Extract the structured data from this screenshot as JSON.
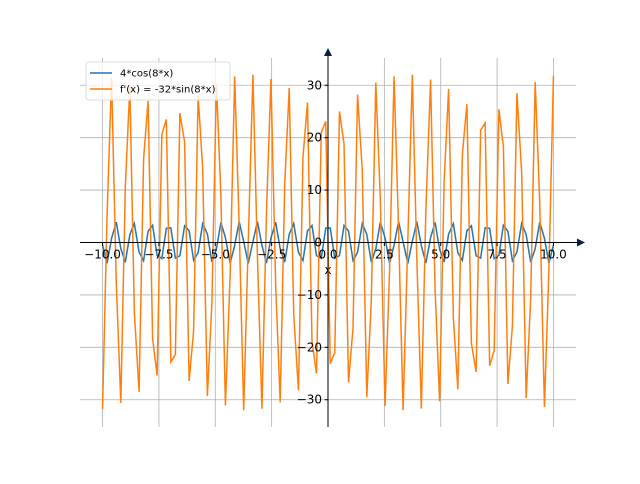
{
  "chart_data": {
    "type": "line",
    "x": [
      -10.0,
      -9.8,
      -9.6,
      -9.39,
      -9.19,
      -8.99,
      -8.79,
      -8.59,
      -8.38,
      -8.18,
      -7.98,
      -7.78,
      -7.58,
      -7.37,
      -7.17,
      -6.97,
      -6.77,
      -6.57,
      -6.36,
      -6.16,
      -5.96,
      -5.76,
      -5.56,
      -5.35,
      -5.15,
      -4.95,
      -4.75,
      -4.55,
      -4.34,
      -4.14,
      -3.94,
      -3.74,
      -3.54,
      -3.33,
      -3.13,
      -2.93,
      -2.73,
      -2.53,
      -2.32,
      -2.12,
      -1.92,
      -1.72,
      -1.52,
      -1.31,
      -1.11,
      -0.91,
      -0.71,
      -0.51,
      -0.3,
      -0.1,
      0.1,
      0.3,
      0.51,
      0.71,
      0.91,
      1.11,
      1.31,
      1.52,
      1.72,
      1.92,
      2.12,
      2.32,
      2.53,
      2.73,
      2.93,
      3.13,
      3.33,
      3.54,
      3.74,
      3.94,
      4.14,
      4.34,
      4.55,
      4.75,
      4.95,
      5.15,
      5.35,
      5.56,
      5.76,
      5.96,
      6.16,
      6.36,
      6.57,
      6.77,
      6.97,
      7.17,
      7.37,
      7.58,
      7.78,
      7.98,
      8.18,
      8.38,
      8.59,
      8.79,
      8.99,
      9.19,
      9.39,
      9.6,
      9.8,
      10.0
    ],
    "series": [
      {
        "name": "4*cos(8*x)",
        "color": "#1f77b4",
        "values": [
          -0.44,
          -3.95,
          0.8,
          3.88,
          -1.15,
          -3.77,
          1.49,
          3.64,
          -1.82,
          -3.47,
          2.14,
          3.28,
          -2.44,
          -3.06,
          2.71,
          2.81,
          -2.97,
          -2.54,
          3.2,
          2.25,
          -3.4,
          -1.94,
          3.58,
          1.62,
          -3.73,
          -1.28,
          3.84,
          0.93,
          -3.93,
          -0.58,
          3.98,
          0.21,
          -4.0,
          0.15,
          3.99,
          -0.51,
          -3.94,
          0.87,
          3.86,
          -1.22,
          -3.75,
          1.56,
          3.61,
          -1.88,
          -3.44,
          2.2,
          3.24,
          -2.49,
          -3.01,
          2.76,
          2.76,
          -3.01,
          -2.49,
          3.24,
          2.2,
          -3.44,
          -1.88,
          3.61,
          1.56,
          -3.75,
          -1.22,
          3.86,
          0.87,
          -3.94,
          -0.51,
          3.99,
          0.15,
          -4.0,
          0.22,
          3.98,
          -0.58,
          -3.93,
          0.93,
          3.84,
          -1.28,
          -3.73,
          1.62,
          3.58,
          -1.94,
          -3.4,
          2.25,
          3.2,
          -2.54,
          -2.97,
          2.81,
          2.71,
          -3.06,
          -2.44,
          3.28,
          2.14,
          -3.47,
          -1.82,
          3.64,
          1.49,
          -3.77,
          -1.15,
          3.88,
          0.8,
          -3.95,
          -0.44
        ]
      },
      {
        "name": "f'(x) = -32*sin(8*x)",
        "color": "#ff7f0e",
        "values": [
          -31.8,
          5.0,
          31.4,
          -7.8,
          -30.6,
          10.6,
          29.7,
          -13.3,
          -28.5,
          15.9,
          27.0,
          -18.3,
          -25.4,
          20.6,
          23.5,
          -22.8,
          -21.4,
          24.7,
          19.2,
          -26.4,
          -16.8,
          28.0,
          14.3,
          -29.3,
          -11.6,
          30.3,
          8.9,
          -31.1,
          -6.0,
          31.7,
          3.2,
          -32.0,
          -0.3,
          32.0,
          -2.6,
          -31.7,
          5.5,
          31.2,
          -8.3,
          -30.5,
          11.1,
          29.5,
          -13.8,
          -28.2,
          16.3,
          26.7,
          -18.8,
          -25.0,
          21.0,
          23.1,
          -23.1,
          -21.0,
          25.0,
          18.8,
          -26.7,
          -16.3,
          28.2,
          13.8,
          -29.5,
          -11.1,
          30.5,
          8.3,
          -31.2,
          -5.5,
          31.7,
          2.6,
          -32.0,
          0.3,
          32.0,
          -3.2,
          -31.7,
          6.0,
          31.1,
          -8.9,
          -30.3,
          11.6,
          29.3,
          -14.3,
          -28.0,
          16.8,
          26.4,
          -19.2,
          -24.7,
          21.4,
          22.8,
          -23.5,
          -20.6,
          25.4,
          18.3,
          -27.0,
          -15.9,
          28.5,
          13.3,
          -29.7,
          -10.6,
          30.6,
          7.8,
          -31.4,
          -5.0,
          31.8
        ]
      }
    ],
    "xlabel": "x",
    "xlim": [
      -11,
      11
    ],
    "ylim": [
      -35.2,
      35.2
    ],
    "xticks": [
      {
        "value": -10,
        "label": "−10.0"
      },
      {
        "value": -7.5,
        "label": "−7.5"
      },
      {
        "value": -5,
        "label": "−5.0"
      },
      {
        "value": -2.5,
        "label": "−2.5"
      },
      {
        "value": 0,
        "label": "0.0"
      },
      {
        "value": 2.5,
        "label": "2.5"
      },
      {
        "value": 5,
        "label": "5.0"
      },
      {
        "value": 7.5,
        "label": "7.5"
      },
      {
        "value": 10,
        "label": "10.0"
      }
    ],
    "yticks": [
      {
        "value": -30,
        "label": "−30"
      },
      {
        "value": -20,
        "label": "−20"
      },
      {
        "value": -10,
        "label": "−10"
      },
      0,
      10,
      20,
      30
    ],
    "grid": true,
    "legend": "upper left"
  }
}
